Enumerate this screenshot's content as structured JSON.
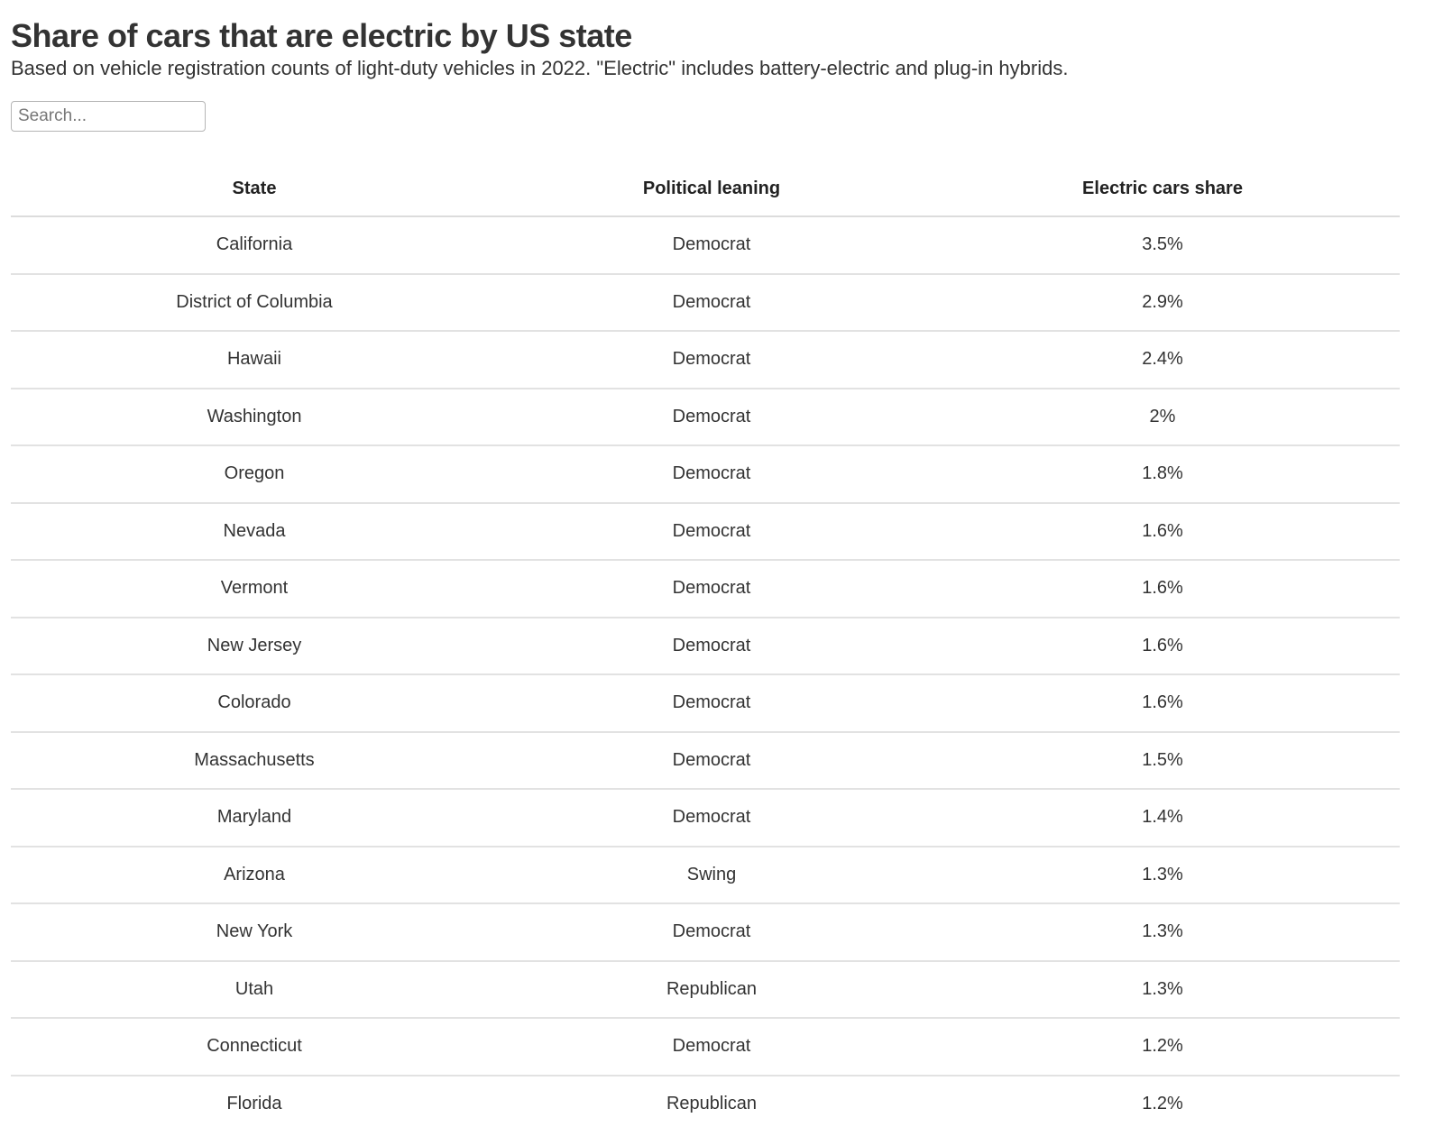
{
  "header": {
    "title": "Share of cars that are electric by US state",
    "subtitle": "Based on vehicle registration counts of light-duty vehicles in 2022. \"Electric\" includes battery-electric and plug-in hybrids."
  },
  "search": {
    "placeholder": "Search...",
    "value": ""
  },
  "table": {
    "columns": [
      "State",
      "Political leaning",
      "Electric cars share"
    ],
    "rows": [
      {
        "state": "California",
        "leaning": "Democrat",
        "share": "3.5%"
      },
      {
        "state": "District of Columbia",
        "leaning": "Democrat",
        "share": "2.9%"
      },
      {
        "state": "Hawaii",
        "leaning": "Democrat",
        "share": "2.4%"
      },
      {
        "state": "Washington",
        "leaning": "Democrat",
        "share": "2%"
      },
      {
        "state": "Oregon",
        "leaning": "Democrat",
        "share": "1.8%"
      },
      {
        "state": "Nevada",
        "leaning": "Democrat",
        "share": "1.6%"
      },
      {
        "state": "Vermont",
        "leaning": "Democrat",
        "share": "1.6%"
      },
      {
        "state": "New Jersey",
        "leaning": "Democrat",
        "share": "1.6%"
      },
      {
        "state": "Colorado",
        "leaning": "Democrat",
        "share": "1.6%"
      },
      {
        "state": "Massachusetts",
        "leaning": "Democrat",
        "share": "1.5%"
      },
      {
        "state": "Maryland",
        "leaning": "Democrat",
        "share": "1.4%"
      },
      {
        "state": "Arizona",
        "leaning": "Swing",
        "share": "1.3%"
      },
      {
        "state": "New York",
        "leaning": "Democrat",
        "share": "1.3%"
      },
      {
        "state": "Utah",
        "leaning": "Republican",
        "share": "1.3%"
      },
      {
        "state": "Connecticut",
        "leaning": "Democrat",
        "share": "1.2%"
      },
      {
        "state": "Florida",
        "leaning": "Republican",
        "share": "1.2%"
      }
    ]
  },
  "chart_data": {
    "type": "table",
    "title": "Share of cars that are electric by US state",
    "subtitle": "Based on vehicle registration counts of light-duty vehicles in 2022. \"Electric\" includes battery-electric and plug-in hybrids.",
    "columns": [
      "State",
      "Political leaning",
      "Electric cars share"
    ],
    "categories": [
      "California",
      "District of Columbia",
      "Hawaii",
      "Washington",
      "Oregon",
      "Nevada",
      "Vermont",
      "New Jersey",
      "Colorado",
      "Massachusetts",
      "Maryland",
      "Arizona",
      "New York",
      "Utah",
      "Connecticut",
      "Florida"
    ],
    "political_leaning": [
      "Democrat",
      "Democrat",
      "Democrat",
      "Democrat",
      "Democrat",
      "Democrat",
      "Democrat",
      "Democrat",
      "Democrat",
      "Democrat",
      "Democrat",
      "Swing",
      "Democrat",
      "Republican",
      "Democrat",
      "Republican"
    ],
    "values": [
      3.5,
      2.9,
      2.4,
      2.0,
      1.8,
      1.6,
      1.6,
      1.6,
      1.6,
      1.5,
      1.4,
      1.3,
      1.3,
      1.3,
      1.2,
      1.2
    ],
    "unit": "%"
  },
  "colors": {
    "text": "#333333",
    "rule": "#e2e2e2",
    "input_border": "#b5b5b5"
  }
}
